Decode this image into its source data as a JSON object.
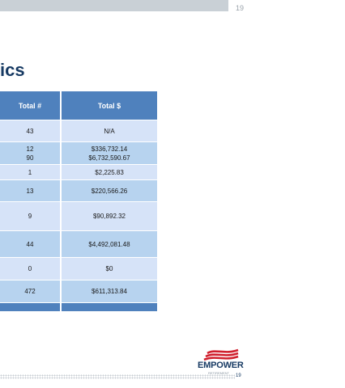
{
  "header": {
    "page_number": "19"
  },
  "slide": {
    "title_fragment": "ics"
  },
  "table": {
    "columns": [
      "Total #",
      "Total $"
    ],
    "rows": [
      {
        "count": "43",
        "amount": "N/A"
      },
      {
        "count": "12\n90",
        "amount": "$336,732.14\n$6,732,590.67"
      },
      {
        "count": "1",
        "amount": "$2,225.83"
      },
      {
        "count": "13",
        "amount": "$220,566.26"
      },
      {
        "count": "9",
        "amount": "$90,892.32"
      },
      {
        "count": "44",
        "amount": "$4,492,081.48"
      },
      {
        "count": "0",
        "amount": "$0"
      },
      {
        "count": "472",
        "amount": "$611,313.84"
      }
    ]
  },
  "footer": {
    "logo_text": "EMPOWER",
    "logo_subtext": "RETIREMENT",
    "page_number": "19"
  },
  "colors": {
    "header_blue": "#4f81bd",
    "row_light": "#d6e3f8",
    "row_mid": "#b7d3ef",
    "title_navy": "#173a63",
    "logo_red": "#d0202e"
  }
}
